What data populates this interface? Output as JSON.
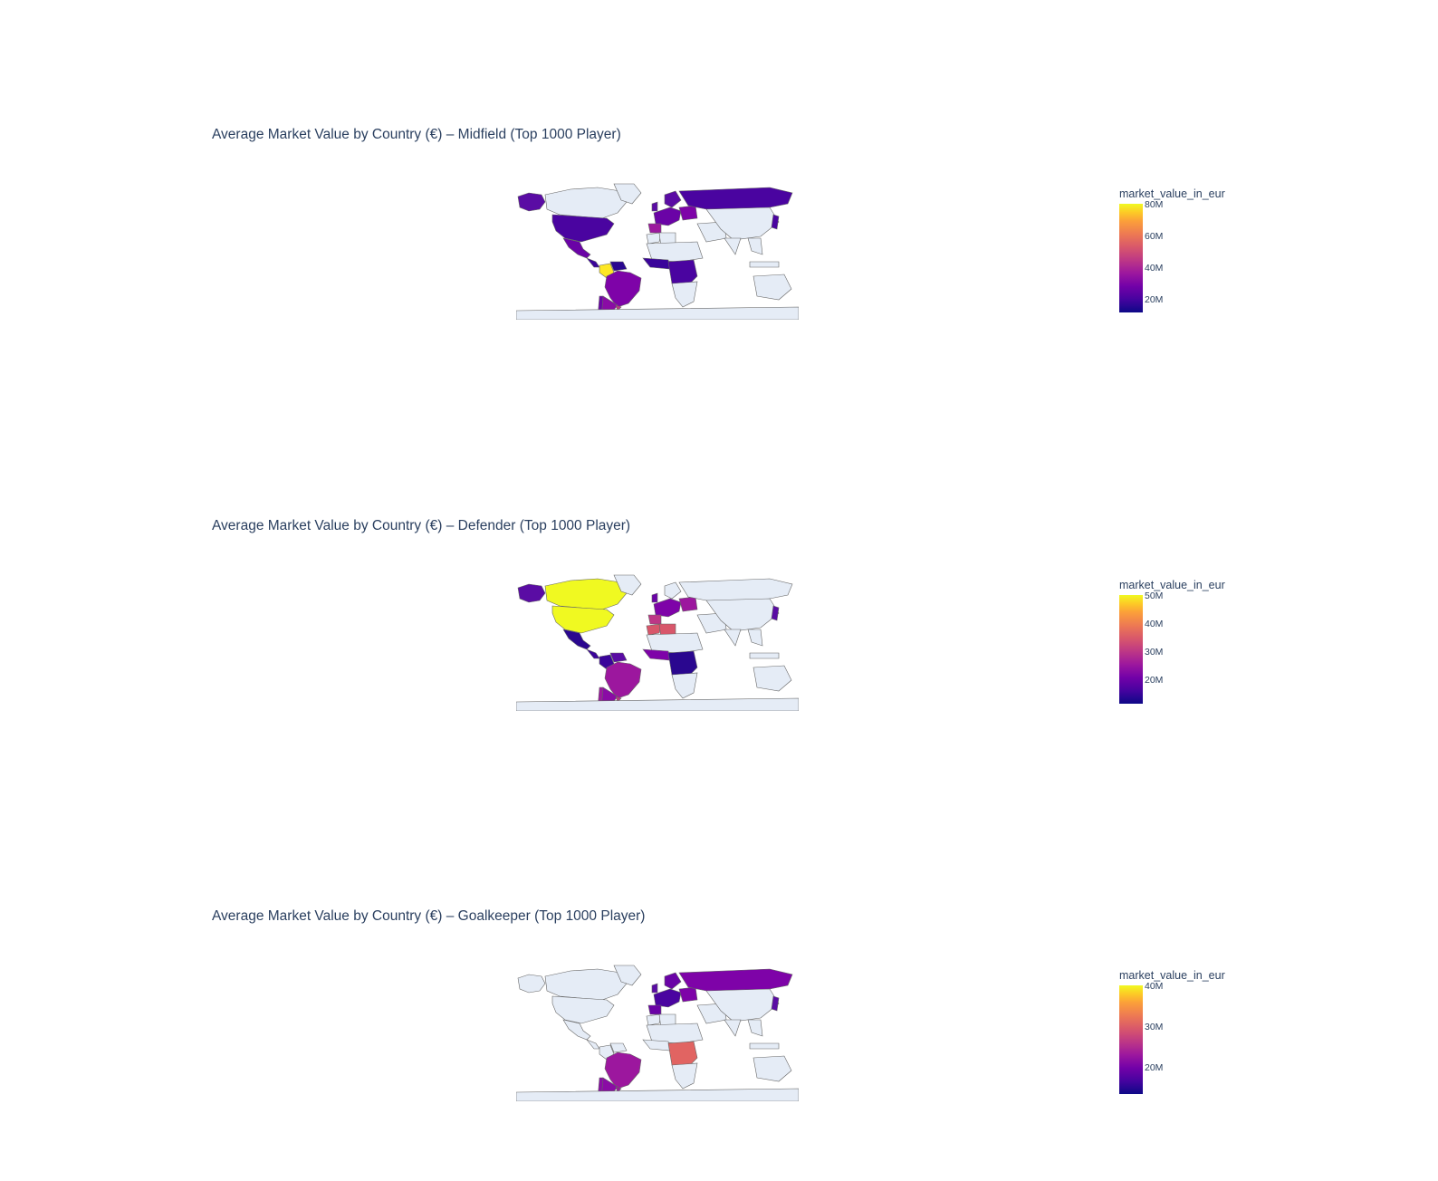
{
  "colorscale": [
    "#0d0887",
    "#46039f",
    "#7201a8",
    "#9c179e",
    "#bd3786",
    "#d8576b",
    "#ed7953",
    "#fb9f3a",
    "#fdca26",
    "#f0f921"
  ],
  "land_color": "#e5ecf6",
  "border_color": "#666666",
  "chart_data": [
    {
      "type": "choropleth",
      "title": "Average Market Value by Country (€) – Midfield (Top 1000 Player)",
      "colorbar_title": "market_value_in_eur",
      "colorbar_ticks": [
        "80M",
        "60M",
        "40M",
        "20M"
      ],
      "value_range": [
        10000000,
        80000000
      ],
      "highlighted_regions": [
        "Alaska/USA",
        "USA",
        "Mexico",
        "Colombia",
        "Venezuela",
        "Brazil",
        "Argentina",
        "Uruguay",
        "Chile",
        "Western Europe",
        "Russia",
        "West Africa",
        "Central Africa",
        "Japan"
      ]
    },
    {
      "type": "choropleth",
      "title": "Average Market Value by Country (€) – Defender (Top 1000 Player)",
      "colorbar_title": "market_value_in_eur",
      "colorbar_ticks": [
        "50M",
        "40M",
        "30M",
        "20M"
      ],
      "value_range": [
        12000000,
        50000000
      ],
      "highlighted_regions": [
        "Canada",
        "USA",
        "Alaska/USA",
        "Mexico",
        "Colombia",
        "Ecuador",
        "Brazil",
        "Argentina",
        "Uruguay",
        "Chile",
        "Western Europe",
        "Morocco",
        "Algeria",
        "West Africa",
        "Cameroon",
        "Japan"
      ]
    },
    {
      "type": "choropleth",
      "title": "Average Market Value by Country (€) – Goalkeeper (Top 1000 Player)",
      "colorbar_title": "market_value_in_eur",
      "colorbar_ticks": [
        "40M",
        "30M",
        "20M"
      ],
      "value_range": [
        14000000,
        40000000
      ],
      "highlighted_regions": [
        "Brazil",
        "Argentina",
        "Uruguay",
        "Western Europe",
        "Russia",
        "Cameroon",
        "Japan"
      ]
    }
  ]
}
